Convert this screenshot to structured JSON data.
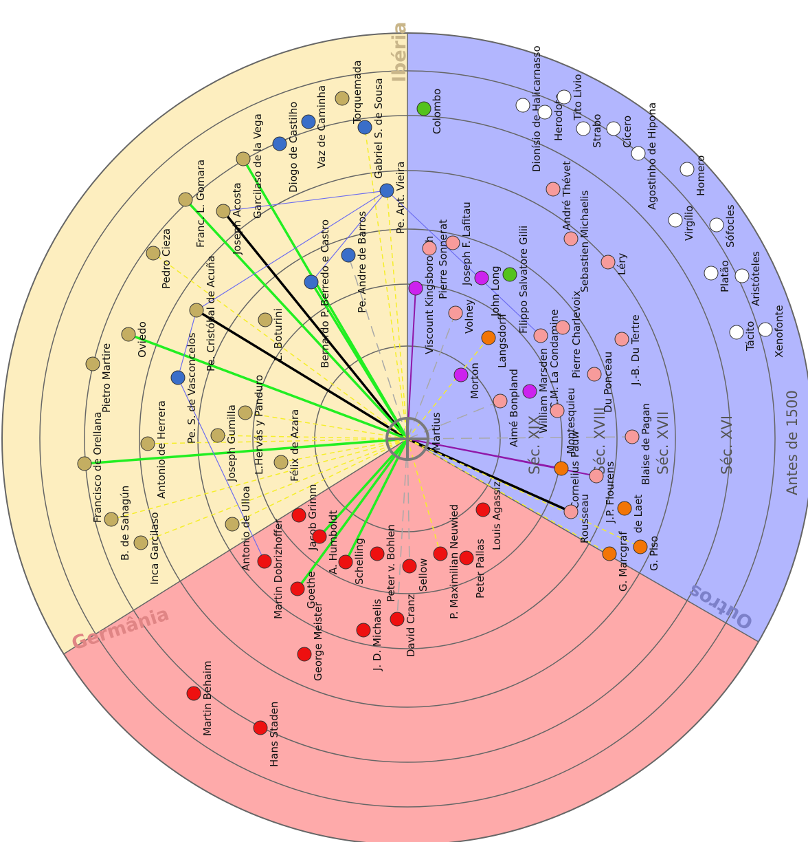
{
  "regions": [
    {
      "name": "Ibéria",
      "fill": "#fdeebf",
      "label_color": "#c9b68a"
    },
    {
      "name": "Germânia",
      "fill": "#feaaaa",
      "label_color": "#e08585"
    },
    {
      "name": "Outros",
      "fill": "#b2b6fe",
      "label_color": "#7c80c9"
    }
  ],
  "eras": [
    "Antes de 1500",
    "Séc. XVI",
    "Séc. XVII",
    "Séc. XVIII",
    "Séc. XIX"
  ],
  "center": "Martius",
  "group_colors": {
    "iberia": "#c4ae62",
    "portugal": "#3a6ec9",
    "germany": "#ee1010",
    "other": "#f79b9b",
    "holland": "#f27506",
    "italy": "#54c21d",
    "england": "#cc22ee",
    "classic": "#ffffff"
  },
  "edge_colors": {
    "green": "#22ee22",
    "black": "#000000",
    "yellow": "#f5ee2a",
    "blue": "#6c6cf0",
    "purple": "#9018a8",
    "gray": "#a8a8a8"
  },
  "nodes": [
    {
      "id": "torquemada",
      "label": "Torquemada",
      "group": "iberia"
    },
    {
      "id": "vaz",
      "label": "Vaz de Caminha",
      "group": "portugal"
    },
    {
      "id": "castilho",
      "label": "Diogo de Castilho",
      "group": "portugal"
    },
    {
      "id": "gsousa",
      "label": "Gabriel S. de Sousa",
      "group": "portugal"
    },
    {
      "id": "gvega",
      "label": "Garcilaso de la Vega",
      "group": "iberia"
    },
    {
      "id": "gomara",
      "label": "Franc. L. Gomara",
      "group": "iberia"
    },
    {
      "id": "acosta",
      "label": "Joseph Acosta",
      "group": "iberia"
    },
    {
      "id": "cieza",
      "label": "Pedro Cieza",
      "group": "iberia"
    },
    {
      "id": "acuna",
      "label": "Pe. Cristóbal de Acuña",
      "group": "iberia"
    },
    {
      "id": "vieira",
      "label": "Pe. Ant. Vieira",
      "group": "portugal"
    },
    {
      "id": "barros",
      "label": "Pe. Andre de Barros",
      "group": "portugal"
    },
    {
      "id": "castro",
      "label": "Bernardo P. Berredo e Castro",
      "group": "portugal"
    },
    {
      "id": "boturini",
      "label": "L. Boturini",
      "group": "iberia"
    },
    {
      "id": "oviedo",
      "label": "Oviedo",
      "group": "iberia"
    },
    {
      "id": "martire",
      "label": "Pietro Martire",
      "group": "iberia"
    },
    {
      "id": "vasconcelos",
      "label": "Pe. S. de Vasconcelos",
      "group": "portugal"
    },
    {
      "id": "herrera",
      "label": "Antonio de Herrera",
      "group": "iberia"
    },
    {
      "id": "gumilla",
      "label": "Joseph Gumilla",
      "group": "iberia"
    },
    {
      "id": "hervas",
      "label": "L.Hervás y Panduro",
      "group": "iberia"
    },
    {
      "id": "orellana",
      "label": "Francisco de Orellana",
      "group": "iberia"
    },
    {
      "id": "azara",
      "label": "Félix de Azara",
      "group": "iberia"
    },
    {
      "id": "sahagun",
      "label": "B. de Sahagún",
      "group": "iberia"
    },
    {
      "id": "ulloa",
      "label": "Antonio de Ulloa",
      "group": "iberia"
    },
    {
      "id": "igarcilaso",
      "label": "Inca Garcilaso",
      "group": "iberia"
    },
    {
      "id": "dobrizhoffer",
      "label": "Martin Dobrizhoffer",
      "group": "germany"
    },
    {
      "id": "grimm",
      "label": "Jacob Grimm",
      "group": "germany"
    },
    {
      "id": "humboldt",
      "label": "A. Humboldt",
      "group": "germany"
    },
    {
      "id": "schelling",
      "label": "Schelling",
      "group": "germany"
    },
    {
      "id": "goethe",
      "label": "Goethe",
      "group": "germany"
    },
    {
      "id": "bohlen",
      "label": "Peter v. Bohlen",
      "group": "germany"
    },
    {
      "id": "sellow",
      "label": "Sellow",
      "group": "germany"
    },
    {
      "id": "neuwied",
      "label": "P. Maximilian Neuwied",
      "group": "germany"
    },
    {
      "id": "pallas",
      "label": "Peter Pallas",
      "group": "germany"
    },
    {
      "id": "agassiz",
      "label": "Louis Agassiz",
      "group": "germany"
    },
    {
      "id": "michaelis",
      "label": "J. D. Michaelis",
      "group": "germany"
    },
    {
      "id": "cranz",
      "label": "David Cranz",
      "group": "germany"
    },
    {
      "id": "meister",
      "label": "George Meister",
      "group": "germany"
    },
    {
      "id": "behaim",
      "label": "Martin Behaim",
      "group": "germany"
    },
    {
      "id": "staden",
      "label": "Hans Staden",
      "group": "germany"
    },
    {
      "id": "colombo",
      "label": "Colombo",
      "group": "italy"
    },
    {
      "id": "dionisio",
      "label": "Dionísio de Halicarnasso",
      "group": "classic"
    },
    {
      "id": "herodoto",
      "label": "Herodoto",
      "group": "classic"
    },
    {
      "id": "titolivio",
      "label": "Tito Livio",
      "group": "classic"
    },
    {
      "id": "strabo",
      "label": "Strabo",
      "group": "classic"
    },
    {
      "id": "cicero",
      "label": "Cícero",
      "group": "classic"
    },
    {
      "id": "agostinho",
      "label": "Agostinho de Hipona",
      "group": "classic"
    },
    {
      "id": "homero",
      "label": "Homero",
      "group": "classic"
    },
    {
      "id": "virgilio",
      "label": "Virgílio",
      "group": "classic"
    },
    {
      "id": "sofocles",
      "label": "Sófocles",
      "group": "classic"
    },
    {
      "id": "platao",
      "label": "Platão",
      "group": "classic"
    },
    {
      "id": "aristoteles",
      "label": "Aristóteles",
      "group": "classic"
    },
    {
      "id": "tacito",
      "label": "Tácito",
      "group": "classic"
    },
    {
      "id": "xenofonte",
      "label": "Xenofonte",
      "group": "classic"
    },
    {
      "id": "thevet",
      "label": "André Thévet",
      "group": "other"
    },
    {
      "id": "smichaelis",
      "label": "Sebastien Michaelis",
      "group": "other"
    },
    {
      "id": "lery",
      "label": "Léry",
      "group": "other"
    },
    {
      "id": "kingsborough",
      "label": "Viscount Kingsborough",
      "group": "england"
    },
    {
      "id": "sonnerat",
      "label": "Pierre Sonnerat",
      "group": "other"
    },
    {
      "id": "lafitau",
      "label": "Joseph F. Lafitau",
      "group": "other"
    },
    {
      "id": "volney",
      "label": "Volney",
      "group": "other"
    },
    {
      "id": "jlong",
      "label": "John Long",
      "group": "england"
    },
    {
      "id": "gilii",
      "label": "Filippo Salvatore Gilii",
      "group": "italy"
    },
    {
      "id": "langsdorff",
      "label": "Langsdorff",
      "group": "holland"
    },
    {
      "id": "condamine",
      "label": "C.M. La Condamine",
      "group": "other"
    },
    {
      "id": "charlevoix",
      "label": "Pierre Charlevoix",
      "group": "other"
    },
    {
      "id": "dutertre",
      "label": "J.-B. Du Tertre",
      "group": "other"
    },
    {
      "id": "morton",
      "label": "Morton",
      "group": "england"
    },
    {
      "id": "marsden",
      "label": "William Marsden",
      "group": "england"
    },
    {
      "id": "duponceau",
      "label": "Du Ponceau",
      "group": "other"
    },
    {
      "id": "bonpland",
      "label": "Aimé Bonpland",
      "group": "other"
    },
    {
      "id": "montesquieu",
      "label": "Montesquieu",
      "group": "other"
    },
    {
      "id": "pagan",
      "label": "Blaise de Pagan",
      "group": "other"
    },
    {
      "id": "pauw",
      "label": "Cornelius Pauw",
      "group": "holland"
    },
    {
      "id": "flourens",
      "label": "J.P. Flourens",
      "group": "other"
    },
    {
      "id": "rousseau",
      "label": "Rousseau",
      "group": "other"
    },
    {
      "id": "laet",
      "label": "de Laet",
      "group": "holland"
    },
    {
      "id": "marcgraf",
      "label": "G. Marcgraf",
      "group": "holland"
    },
    {
      "id": "piso",
      "label": "G. Piso",
      "group": "holland"
    }
  ],
  "edges": [
    {
      "from": "martius",
      "to": "acosta",
      "color": "black"
    },
    {
      "from": "martius",
      "to": "acuna",
      "color": "black"
    },
    {
      "from": "martius",
      "to": "rousseau",
      "color": "black"
    },
    {
      "from": "martius",
      "to": "gvega",
      "color": "green"
    },
    {
      "from": "martius",
      "to": "gomara",
      "color": "green"
    },
    {
      "from": "martius",
      "to": "castro",
      "color": "green"
    },
    {
      "from": "martius",
      "to": "oviedo",
      "color": "green"
    },
    {
      "from": "martius",
      "to": "orellana",
      "color": "green"
    },
    {
      "from": "martius",
      "to": "goethe",
      "color": "green"
    },
    {
      "from": "martius",
      "to": "schelling",
      "color": "green"
    },
    {
      "from": "martius",
      "to": "humboldt",
      "color": "green"
    },
    {
      "from": "martius",
      "to": "kingsborough",
      "color": "purple"
    },
    {
      "from": "martius",
      "to": "pauw",
      "color": "purple"
    },
    {
      "from": "martius",
      "to": "flourens",
      "color": "purple"
    },
    {
      "from": "martius",
      "to": "gsousa",
      "color": "yellow"
    },
    {
      "from": "martius",
      "to": "vieira",
      "color": "yellow"
    },
    {
      "from": "martius",
      "to": "cieza",
      "color": "yellow"
    },
    {
      "from": "martius",
      "to": "herrera",
      "color": "yellow"
    },
    {
      "from": "martius",
      "to": "gumilla",
      "color": "yellow"
    },
    {
      "from": "martius",
      "to": "hervas",
      "color": "yellow"
    },
    {
      "from": "martius",
      "to": "azara",
      "color": "yellow"
    },
    {
      "from": "martius",
      "to": "sahagun",
      "color": "yellow"
    },
    {
      "from": "martius",
      "to": "ulloa",
      "color": "yellow"
    },
    {
      "from": "martius",
      "to": "igarcilaso",
      "color": "yellow"
    },
    {
      "from": "martius",
      "to": "neuwied",
      "color": "yellow"
    },
    {
      "from": "martius",
      "to": "langsdorff",
      "color": "yellow"
    },
    {
      "from": "martius",
      "to": "marcgraf",
      "color": "yellow"
    },
    {
      "from": "martius",
      "to": "piso",
      "color": "yellow"
    },
    {
      "from": "martius",
      "to": "barros",
      "color": "gray"
    },
    {
      "from": "martius",
      "to": "cranz",
      "color": "gray"
    },
    {
      "from": "martius",
      "to": "sellow",
      "color": "gray"
    },
    {
      "from": "martius",
      "to": "bonpland",
      "color": "gray"
    },
    {
      "from": "martius",
      "to": "pagan",
      "color": "gray"
    },
    {
      "from": "martius",
      "to": "volney",
      "color": "gray"
    },
    {
      "from": "vieira",
      "to": "acosta",
      "color": "blue"
    },
    {
      "from": "vieira",
      "to": "acuna",
      "color": "blue"
    },
    {
      "from": "vieira",
      "to": "castro",
      "color": "blue"
    },
    {
      "from": "vieira",
      "to": "condamine",
      "color": "blue"
    },
    {
      "from": "vasconcelos",
      "to": "acuna",
      "color": "blue"
    },
    {
      "from": "vasconcelos",
      "to": "dobrizhoffer",
      "color": "blue"
    }
  ]
}
